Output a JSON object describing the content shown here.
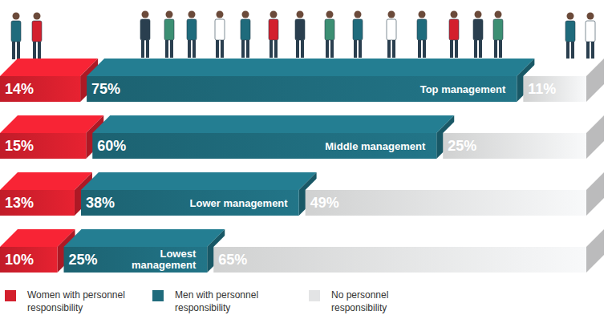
{
  "chart_data": {
    "type": "bar",
    "orientation": "horizontal",
    "stacked": true,
    "data_labels": true,
    "tick_labels": false,
    "legend": "bottom",
    "categories": [
      "Top management",
      "Middle management",
      "Lower management",
      "Lowest management"
    ],
    "xlim": [
      0,
      100
    ],
    "series": [
      {
        "name": "Women with personnel responsibility",
        "color": "#d31f2d",
        "values": [
          14,
          15,
          13,
          10
        ],
        "value_labels": [
          "14%",
          "15%",
          "13%",
          "10%"
        ]
      },
      {
        "name": "Men with personnel responsibility",
        "color": "#1f6b7c",
        "values": [
          75,
          60,
          38,
          25
        ],
        "value_labels": [
          "75%",
          "60%",
          "38%",
          "25%"
        ]
      },
      {
        "name": "No personnel responsibility",
        "color": "#e3e4e5",
        "values": [
          11,
          25,
          49,
          65
        ],
        "value_labels": [
          "11%",
          "25%",
          "49%",
          "65%"
        ]
      }
    ]
  }
}
